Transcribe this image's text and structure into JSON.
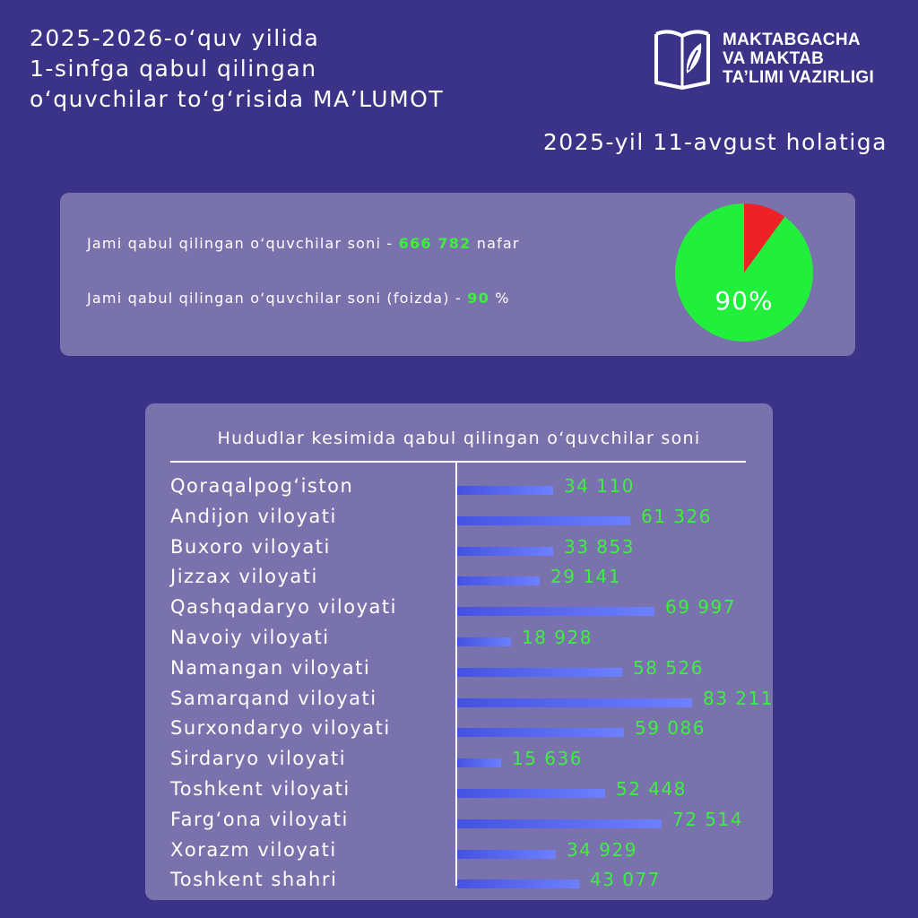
{
  "header": {
    "title_lines": [
      "2025-2026-o‘quv yilida",
      "1-sinfga qabul qilingan",
      "o‘quvchilar to‘g‘risida MA’LUMOT"
    ],
    "date": "2025-yil 11-avgust holatiga"
  },
  "logo": {
    "icon": "open-book-leaf-icon",
    "lines": [
      "MAKTABGACHA",
      "VA MAKTAB",
      "TA’LIMI VAZIRLIGI"
    ]
  },
  "summary": {
    "total_prefix": "Jami qabul qilingan o‘quvchilar soni - ",
    "total_value": "666 782",
    "total_suffix": " nafar",
    "percent_prefix": "Jami qabul qilingan o‘quvchilar soni (foizda) - ",
    "percent_value": "90",
    "percent_suffix": " %",
    "pie_label": "90%"
  },
  "colors": {
    "background": "#3b3387",
    "panel": "#7a72ad",
    "accent_green": "#3df03d",
    "pie_green": "#22ee3c",
    "pie_red": "#ee2226",
    "bar": "#5566ee"
  },
  "chart_data": [
    {
      "type": "pie",
      "values": [
        90,
        10
      ]
    },
    {
      "type": "bar",
      "orientation": "horizontal",
      "title": "Hududlar kesimida qabul qilingan o‘quvchilar soni",
      "categories": [
        "Qoraqalpog‘iston",
        "Andijon viloyati",
        "Buxoro viloyati",
        "Jizzax viloyati",
        "Qashqadaryo viloyati",
        "Navoiy viloyati",
        "Namangan viloyati",
        "Samarqand viloyati",
        "Surxondaryo viloyati",
        "Sirdaryo viloyati",
        "Toshkent viloyati",
        "Farg‘ona viloyati",
        "Xorazm viloyati",
        "Toshkent shahri"
      ],
      "values": [
        34110,
        61326,
        33853,
        29141,
        69997,
        18928,
        58526,
        83211,
        59086,
        15636,
        52448,
        72514,
        34929,
        43077
      ],
      "value_labels": [
        "34 110",
        "61 326",
        "33 853",
        "29 141",
        "69 997",
        "18 928",
        "58 526",
        "83 211",
        "59 086",
        "15 636",
        "52 448",
        "72 514",
        "34 929",
        "43 077"
      ]
    }
  ]
}
